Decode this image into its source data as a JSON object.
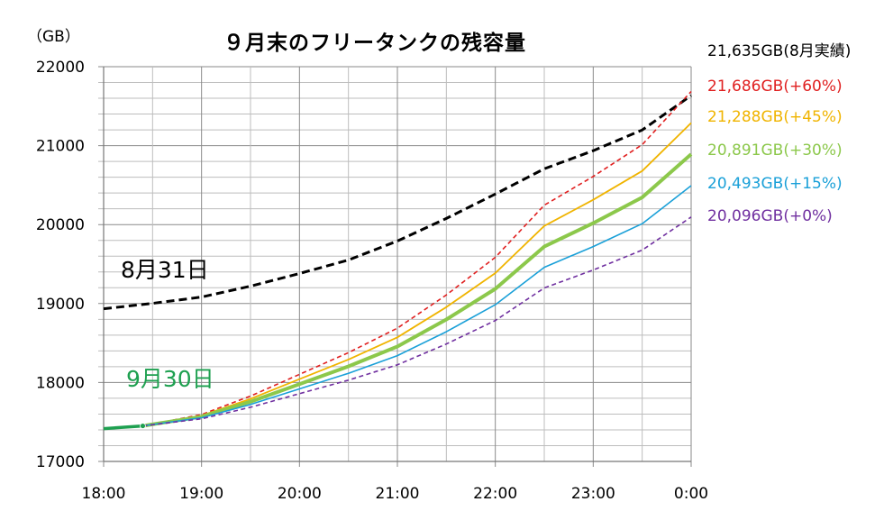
{
  "chart_data": {
    "type": "line",
    "title": "９月末のフリータンクの残容量",
    "ylabel": "（GB）",
    "xlabel": "",
    "ylim": [
      17000,
      22000
    ],
    "xlim": [
      18,
      24
    ],
    "grid": true,
    "yticks": [
      17000,
      18000,
      19000,
      20000,
      21000,
      22000
    ],
    "xtick_labels": [
      "18:00",
      "19:00",
      "20:00",
      "21:00",
      "22:00",
      "23:00",
      "0:00"
    ],
    "series": [
      {
        "name": "8月31日",
        "label": "21,635GB(8月実績)",
        "color": "#000000",
        "dash": true,
        "width": 3,
        "x": [
          18,
          18.5,
          19,
          19.5,
          20,
          20.5,
          21,
          21.5,
          22,
          22.5,
          23,
          23.5,
          24
        ],
        "values": [
          18934,
          19002,
          19082,
          19220,
          19380,
          19551,
          19792,
          20078,
          20387,
          20707,
          20936,
          21199,
          21635
        ]
      },
      {
        "name": "+60%",
        "label": "21,686GB(+60%)",
        "color": "#e02020",
        "dash": true,
        "width": 1.6,
        "x": [
          18.4,
          18.5,
          19,
          19.5,
          20,
          20.5,
          21,
          21.5,
          22,
          22.5,
          23,
          23.5,
          24
        ],
        "values": [
          17450,
          17474,
          17594,
          17828,
          18103,
          18378,
          18688,
          19109,
          19586,
          20245,
          20610,
          21013,
          21686
        ]
      },
      {
        "name": "+45%",
        "label": "21,288GB(+45%)",
        "color": "#f0b400",
        "dash": false,
        "width": 1.8,
        "x": [
          18.4,
          18.5,
          19,
          19.5,
          20,
          20.5,
          21,
          21.5,
          22,
          22.5,
          23,
          23.5,
          24
        ],
        "values": [
          17450,
          17472,
          17581,
          17792,
          18042,
          18291,
          18572,
          18954,
          19386,
          19983,
          20314,
          20679,
          21288
        ]
      },
      {
        "name": "+30%",
        "label": "20,891GB(+30%)",
        "color": "#8cc84b",
        "dash": false,
        "width": 4,
        "x": [
          18.4,
          18.5,
          19,
          19.5,
          20,
          20.5,
          21,
          21.5,
          22,
          22.5,
          23,
          23.5,
          24
        ],
        "values": [
          17450,
          17470,
          17567,
          17757,
          17980,
          18204,
          18456,
          18798,
          19186,
          19721,
          20018,
          20345,
          20891
        ]
      },
      {
        "name": "+15%",
        "label": "20,493GB(+15%)",
        "color": "#1aa0d8",
        "dash": false,
        "width": 1.6,
        "x": [
          18.4,
          18.5,
          19,
          19.5,
          20,
          20.5,
          21,
          21.5,
          22,
          22.5,
          23,
          23.5,
          24
        ],
        "values": [
          17450,
          17467,
          17554,
          17721,
          17919,
          18117,
          18340,
          18643,
          18985,
          19459,
          19721,
          20011,
          20493
        ]
      },
      {
        "name": "+0%",
        "label": "20,096GB(+0%)",
        "color": "#7030a0",
        "dash": true,
        "width": 1.6,
        "x": [
          18.4,
          18.5,
          19,
          19.5,
          20,
          20.5,
          21,
          21.5,
          22,
          22.5,
          23,
          23.5,
          24
        ],
        "values": [
          17450,
          17465,
          17540,
          17686,
          17858,
          18030,
          18224,
          18487,
          18785,
          19197,
          19425,
          19677,
          20096
        ]
      },
      {
        "name": "9月30日",
        "label": "",
        "color": "#1ea050",
        "dash": false,
        "width": 3.5,
        "x": [
          18,
          18.4
        ],
        "values": [
          17415,
          17450
        ]
      }
    ],
    "annotations": [
      {
        "text": "8月31日",
        "color": "#000000"
      },
      {
        "text": "9月30日",
        "color": "#1ea050"
      }
    ]
  }
}
